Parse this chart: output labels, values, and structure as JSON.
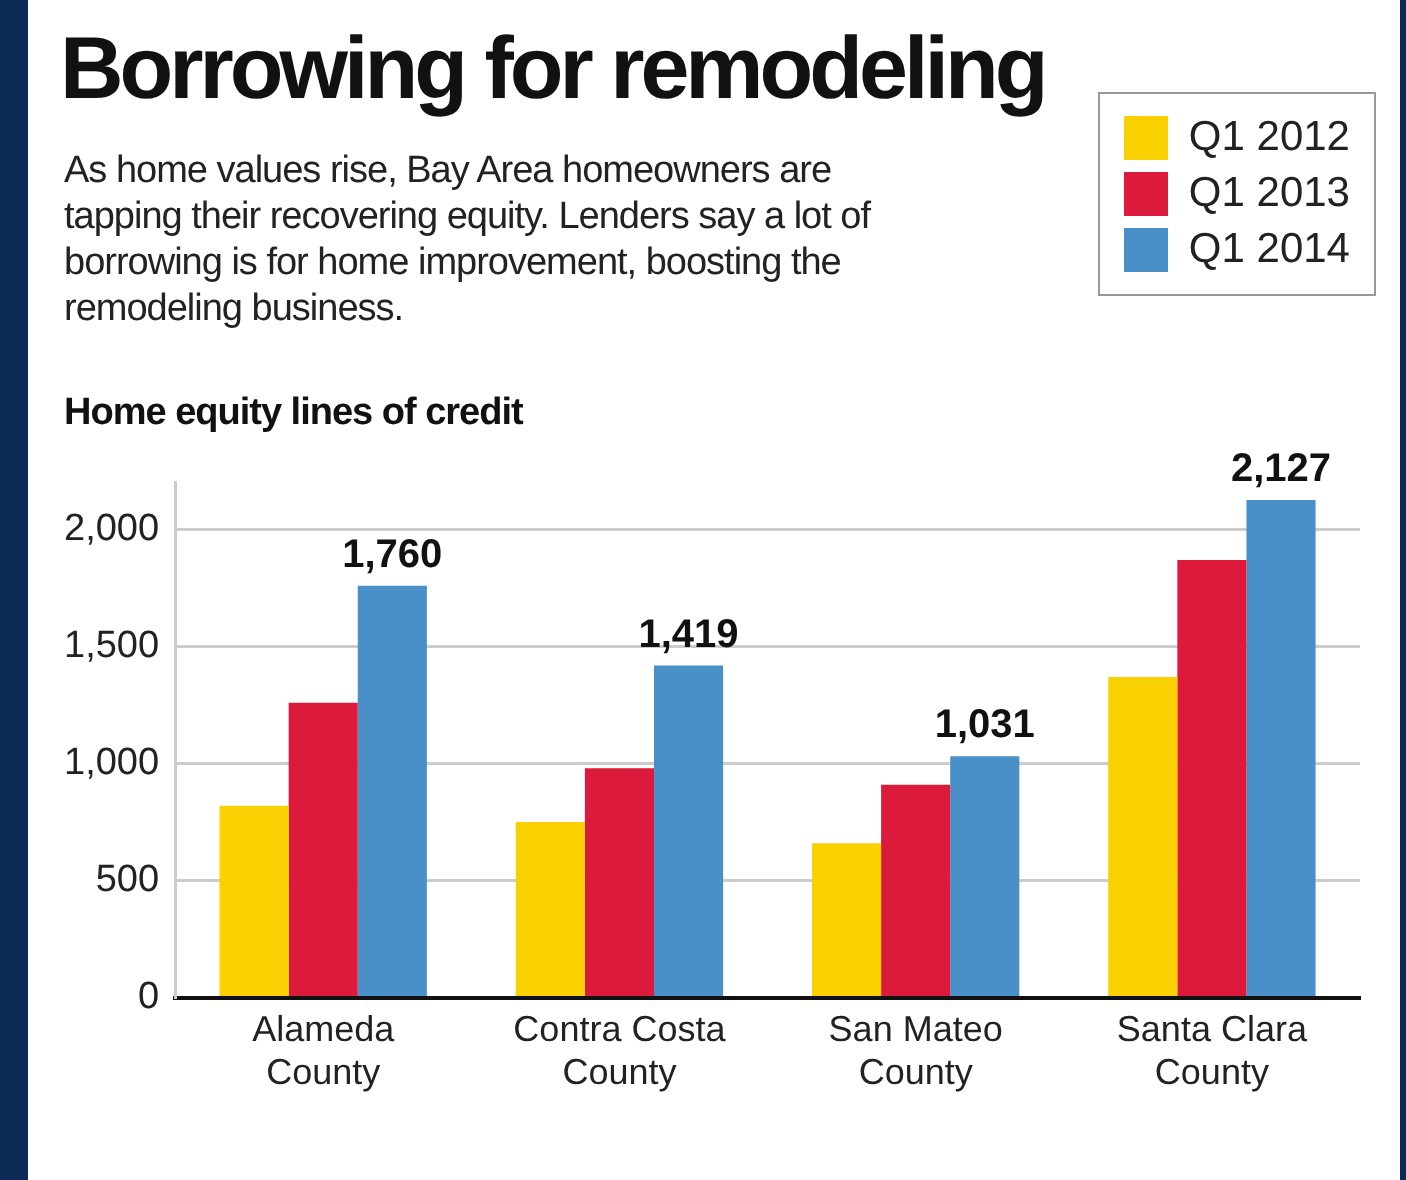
{
  "chart_data": {
    "type": "bar",
    "title": "Borrowing for remodeling",
    "subtitle": "As home values rise, Bay Area homeowners are tapping their recovering equity. Lenders say a lot of borrowing is for home improvement, boosting the remodeling business.",
    "ylabel": "Home equity lines of credit",
    "categories": [
      "Alameda County",
      "Contra Costa County",
      "San Mateo County",
      "Santa Clara County"
    ],
    "series": [
      {
        "name": "Q1 2012",
        "color": "#f9d000",
        "values": [
          820,
          750,
          660,
          1370
        ]
      },
      {
        "name": "Q1 2013",
        "color": "#dc1a3c",
        "values": [
          1260,
          980,
          910,
          1870
        ]
      },
      {
        "name": "Q1 2014",
        "color": "#4a90c8",
        "values": [
          1760,
          1419,
          1031,
          2127
        ],
        "value_labels": [
          "1,760",
          "1,419",
          "1,031",
          "2,127"
        ]
      }
    ],
    "ylim": [
      0,
      2200
    ],
    "yticks": [
      {
        "value": 0,
        "label": "0"
      },
      {
        "value": 500,
        "label": "500"
      },
      {
        "value": 1000,
        "label": "1,000"
      },
      {
        "value": 1500,
        "label": "1,500"
      },
      {
        "value": 2000,
        "label": "2,000"
      }
    ],
    "grid": "y",
    "legend": "top right"
  }
}
